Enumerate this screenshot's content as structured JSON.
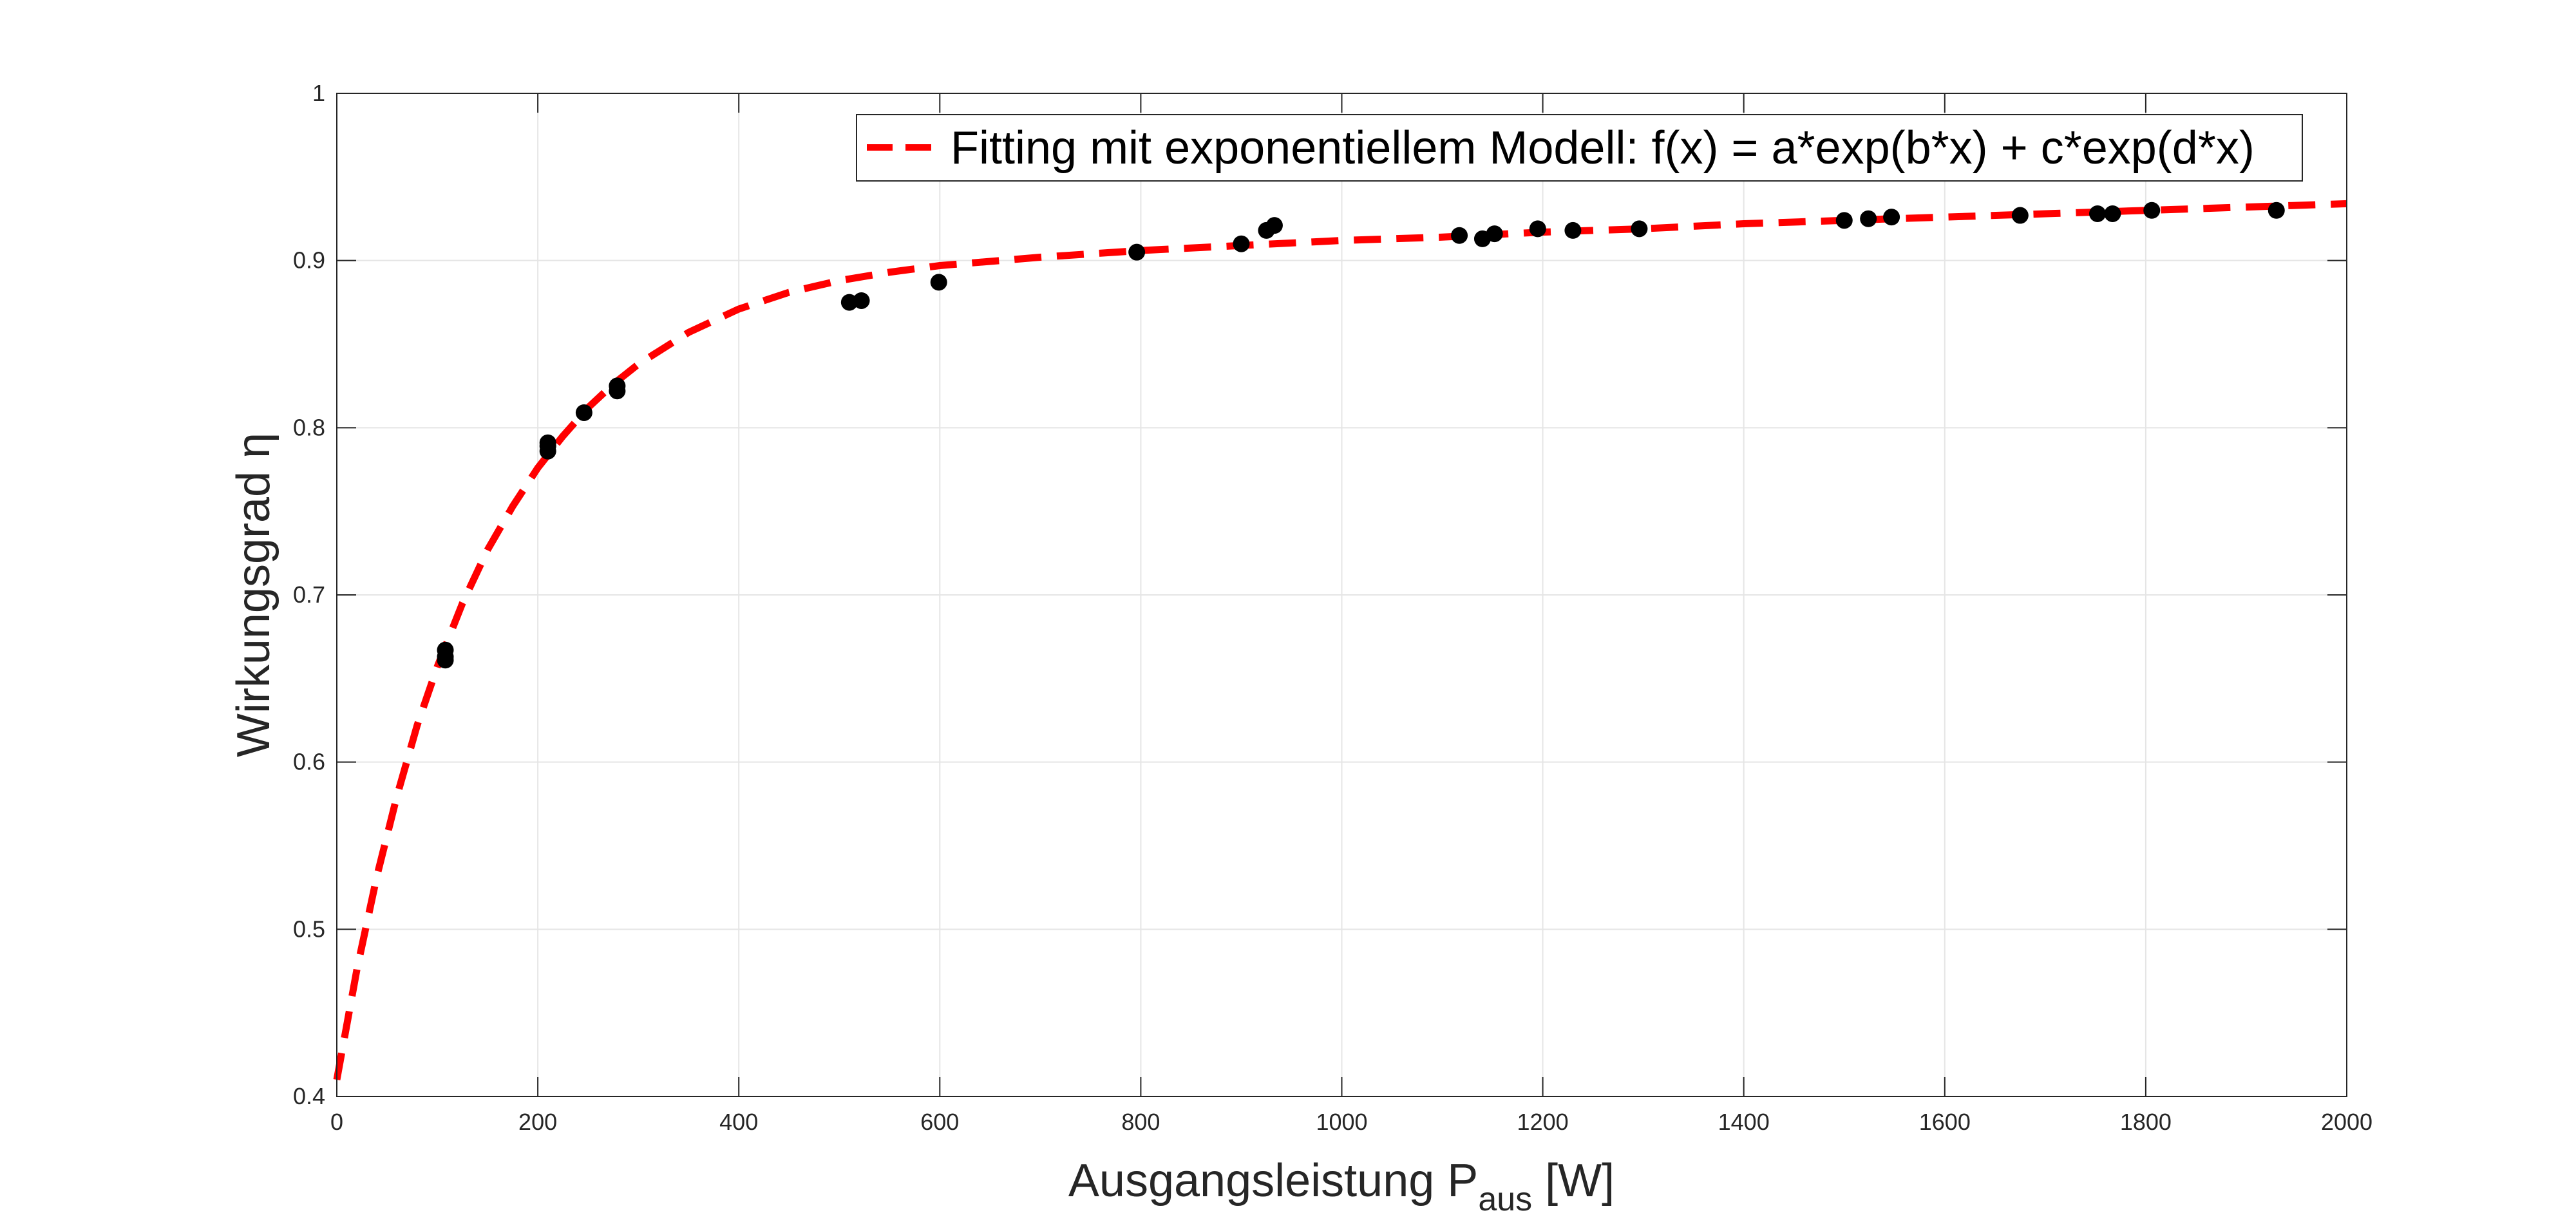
{
  "chart_data": {
    "type": "scatter",
    "xlabel": "Ausgangsleistung P",
    "xlabel_sub": "aus",
    "xlabel_unit": " [W]",
    "ylabel": "Wirkungsgrad η",
    "xlim": [
      0,
      2000
    ],
    "ylim": [
      0.4,
      1
    ],
    "xticks": [
      0,
      200,
      400,
      600,
      800,
      1000,
      1200,
      1400,
      1600,
      1800,
      2000
    ],
    "yticks": [
      0.4,
      0.5,
      0.6,
      0.7,
      0.8,
      0.9,
      1
    ],
    "xtick_labels": [
      "0",
      "200",
      "400",
      "600",
      "800",
      "1000",
      "1200",
      "1400",
      "1600",
      "1800",
      "2000"
    ],
    "ytick_labels": [
      "0.4",
      "0.5",
      "0.6",
      "0.7",
      "0.8",
      "0.9",
      "1"
    ],
    "grid": true,
    "legend_position": "top-right",
    "colors": {
      "fit": "#ff0000",
      "points": "#000000",
      "grid": "#e5e5e5",
      "axis": "#262626"
    },
    "series": [
      {
        "kind": "points",
        "x": [
          108,
          108,
          108,
          210,
          210,
          210,
          246,
          279,
          279,
          510,
          522,
          599,
          796,
          900,
          925,
          933,
          1117,
          1140,
          1152,
          1195,
          1230,
          1296,
          1500,
          1524,
          1547,
          1675,
          1752,
          1767,
          1806,
          1930
        ],
        "y": [
          0.667,
          0.663,
          0.661,
          0.791,
          0.789,
          0.786,
          0.809,
          0.825,
          0.822,
          0.875,
          0.876,
          0.887,
          0.905,
          0.91,
          0.918,
          0.921,
          0.915,
          0.913,
          0.916,
          0.919,
          0.918,
          0.919,
          0.924,
          0.925,
          0.926,
          0.927,
          0.928,
          0.928,
          0.93,
          0.93
        ]
      },
      {
        "kind": "fit",
        "name": "Fitting mit exponentiellem Modell: f(x) = a*exp(b*x) + c*exp(d*x)",
        "x": [
          0,
          20,
          40,
          60,
          80,
          100,
          125,
          150,
          175,
          200,
          225,
          250,
          275,
          300,
          350,
          400,
          450,
          500,
          550,
          600,
          700,
          800,
          900,
          1000,
          1100,
          1200,
          1300,
          1400,
          1500,
          1600,
          1700,
          1800,
          1900,
          2000
        ],
        "y": [
          0.41,
          0.476,
          0.532,
          0.58,
          0.622,
          0.657,
          0.695,
          0.727,
          0.753,
          0.776,
          0.795,
          0.812,
          0.826,
          0.838,
          0.857,
          0.871,
          0.881,
          0.888,
          0.893,
          0.897,
          0.902,
          0.906,
          0.909,
          0.912,
          0.914,
          0.917,
          0.919,
          0.922,
          0.924,
          0.926,
          0.928,
          0.93,
          0.932,
          0.934
        ]
      }
    ]
  }
}
